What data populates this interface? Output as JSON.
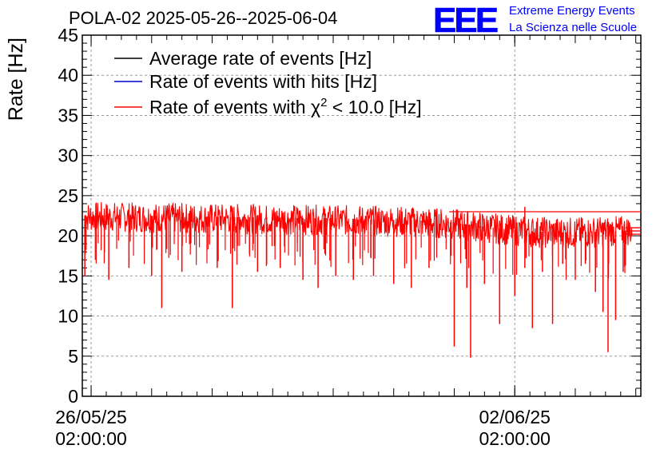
{
  "title": "POLA-02 2025-05-26--2025-06-04",
  "logo": {
    "mark": "EEE",
    "line1": "Extreme Energy Events",
    "line2": "La Scienza nelle Scuole",
    "color": "#0000ff"
  },
  "chart_data": {
    "type": "line",
    "title": "POLA-02 2025-05-26--2025-06-04",
    "xlabel": "",
    "ylabel": "Rate [Hz]",
    "ylim": [
      0,
      45
    ],
    "xlim": [
      "2025-05-25T22:30:00",
      "2025-06-04T04:00:00"
    ],
    "yticks": [
      0,
      5,
      10,
      15,
      20,
      25,
      30,
      35,
      40,
      45
    ],
    "xticks": [
      {
        "date": "2025-05-26T02:00:00",
        "label_line1": "26/05/25",
        "label_line2": "02:00:00"
      },
      {
        "date": "2025-06-02T02:00:00",
        "label_line1": "02/06/25",
        "label_line2": "02:00:00"
      }
    ],
    "grid": true,
    "legend_position": "top-left",
    "legend": [
      {
        "label": "Average rate of events [Hz]",
        "color": "#000000"
      },
      {
        "label": "Rate of events with hits [Hz]",
        "color": "#0000cc"
      },
      {
        "label_prefix": "Rate of events with ",
        "label_symbol": "χ",
        "label_sup": "2",
        "label_suffix": " < 10.0 [Hz]",
        "color": "#ff0000"
      }
    ],
    "series": [
      {
        "name": "Rate of events with χ2 < 10.0 [Hz]",
        "color": "#ff0000",
        "x": [
          "2025-05-26T02:00:00",
          "2025-05-26T12:00:00",
          "2025-05-27T00:00:00",
          "2025-05-27T12:00:00",
          "2025-05-28T00:00:00",
          "2025-05-28T12:00:00",
          "2025-05-29T00:00:00",
          "2025-05-29T12:00:00",
          "2025-05-30T00:00:00",
          "2025-05-30T12:00:00",
          "2025-05-31T00:00:00",
          "2025-05-31T12:00:00",
          "2025-06-01T00:00:00",
          "2025-06-01T12:00:00",
          "2025-06-02T00:00:00",
          "2025-06-02T12:00:00",
          "2025-06-03T00:00:00",
          "2025-06-03T12:00:00",
          "2025-06-04T00:00:00"
        ],
        "values": [
          22.5,
          22.6,
          22.5,
          22.4,
          22.4,
          22.3,
          22.3,
          22.2,
          22.2,
          22.1,
          22.0,
          21.9,
          21.7,
          21.2,
          20.8,
          20.5,
          20.4,
          20.5,
          20.6
        ],
        "band_low": [
          20.5,
          20.5,
          20.4,
          20.3,
          20.3,
          20.2,
          20.2,
          20.1,
          20.1,
          20.0,
          19.9,
          19.8,
          19.6,
          19.2,
          18.8,
          18.5,
          18.4,
          18.6,
          18.8
        ],
        "band_high": [
          24.2,
          24.2,
          24.1,
          24.1,
          24.0,
          24.0,
          23.9,
          23.9,
          23.8,
          23.8,
          23.7,
          23.6,
          23.4,
          23.0,
          22.6,
          22.4,
          22.3,
          22.4,
          22.5
        ],
        "dips": [
          {
            "x": "2025-05-25T23:30:00",
            "y": 15.0
          },
          {
            "x": "2025-05-26T09:00:00",
            "y": 14.5
          },
          {
            "x": "2025-05-26T17:00:00",
            "y": 16.0
          },
          {
            "x": "2025-05-27T02:00:00",
            "y": 15.0
          },
          {
            "x": "2025-05-27T06:00:00",
            "y": 11.0
          },
          {
            "x": "2025-05-27T14:00:00",
            "y": 15.5
          },
          {
            "x": "2025-05-28T04:00:00",
            "y": 16.0
          },
          {
            "x": "2025-05-28T10:00:00",
            "y": 11.0
          },
          {
            "x": "2025-05-28T20:00:00",
            "y": 15.5
          },
          {
            "x": "2025-05-29T05:00:00",
            "y": 16.0
          },
          {
            "x": "2025-05-29T14:00:00",
            "y": 14.5
          },
          {
            "x": "2025-05-29T20:00:00",
            "y": 13.5
          },
          {
            "x": "2025-05-30T03:00:00",
            "y": 15.0
          },
          {
            "x": "2025-05-30T10:00:00",
            "y": 14.5
          },
          {
            "x": "2025-05-30T18:00:00",
            "y": 15.0
          },
          {
            "x": "2025-05-31T02:00:00",
            "y": 14.0
          },
          {
            "x": "2025-05-31T09:00:00",
            "y": 13.5
          },
          {
            "x": "2025-05-31T16:00:00",
            "y": 16.0
          },
          {
            "x": "2025-06-01T02:00:00",
            "y": 6.2
          },
          {
            "x": "2025-06-01T07:00:00",
            "y": 13.5
          },
          {
            "x": "2025-06-01T08:30:00",
            "y": 4.8
          },
          {
            "x": "2025-06-01T14:00:00",
            "y": 14.0
          },
          {
            "x": "2025-06-01T20:00:00",
            "y": 9.0
          },
          {
            "x": "2025-06-02T02:00:00",
            "y": 12.5
          },
          {
            "x": "2025-06-02T06:00:00",
            "y": 16.0
          },
          {
            "x": "2025-06-02T09:00:00",
            "y": 8.5
          },
          {
            "x": "2025-06-02T13:00:00",
            "y": 15.5
          },
          {
            "x": "2025-06-02T17:00:00",
            "y": 9.0
          },
          {
            "x": "2025-06-02T21:00:00",
            "y": 16.5
          },
          {
            "x": "2025-06-03T02:00:00",
            "y": 14.5
          },
          {
            "x": "2025-06-03T06:00:00",
            "y": 16.5
          },
          {
            "x": "2025-06-03T10:00:00",
            "y": 13.0
          },
          {
            "x": "2025-06-03T13:00:00",
            "y": 10.5
          },
          {
            "x": "2025-06-03T15:00:00",
            "y": 5.5
          },
          {
            "x": "2025-06-03T18:00:00",
            "y": 9.5
          },
          {
            "x": "2025-06-03T21:00:00",
            "y": 15.5
          }
        ],
        "spikes": [
          {
            "x": "2025-06-02T06:00:00",
            "y": 23.6
          }
        ],
        "tail_lines": [
          {
            "from": "2025-06-01T00:00:00",
            "y": 23.0
          },
          {
            "from": "2025-06-03T22:00:00",
            "y": 21.0
          },
          {
            "from": "2025-06-03T22:00:00",
            "y": 20.6
          },
          {
            "from": "2025-06-03T22:00:00",
            "y": 20.2
          }
        ]
      }
    ]
  }
}
